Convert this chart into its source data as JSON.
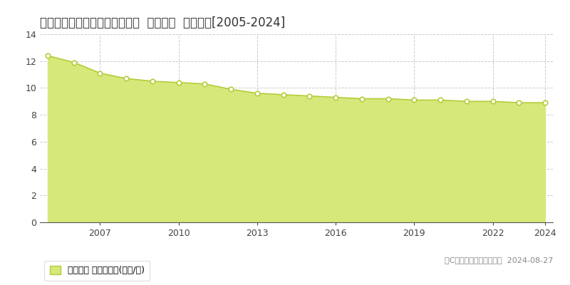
{
  "title": "新潟県阿賀野市緑岡３番８６外  地価公示  地価推移[2005-2024]",
  "years": [
    2005,
    2006,
    2007,
    2008,
    2009,
    2010,
    2011,
    2012,
    2013,
    2014,
    2015,
    2016,
    2017,
    2018,
    2019,
    2020,
    2021,
    2022,
    2023,
    2024
  ],
  "values": [
    12.4,
    11.9,
    11.1,
    10.7,
    10.5,
    10.4,
    10.3,
    9.9,
    9.6,
    9.5,
    9.4,
    9.3,
    9.2,
    9.2,
    9.1,
    9.1,
    9.0,
    9.0,
    8.9,
    8.9
  ],
  "line_color": "#b5cc3a",
  "fill_color": "#d6e87a",
  "fill_alpha": 1.0,
  "marker_facecolor": "white",
  "marker_edgecolor": "#b5cc3a",
  "background_color": "#ffffff",
  "grid_color": "#cccccc",
  "ylim": [
    0,
    14
  ],
  "yticks": [
    0,
    2,
    4,
    6,
    8,
    10,
    12,
    14
  ],
  "xtick_years": [
    2007,
    2010,
    2013,
    2016,
    2019,
    2022,
    2024
  ],
  "legend_label": "地価公示 平均坪単価(万円/坪)",
  "copyright_text": "（C）土地価格ドットコム  2024-08-27",
  "title_fontsize": 12,
  "axis_fontsize": 9,
  "legend_fontsize": 9,
  "copyright_fontsize": 8
}
